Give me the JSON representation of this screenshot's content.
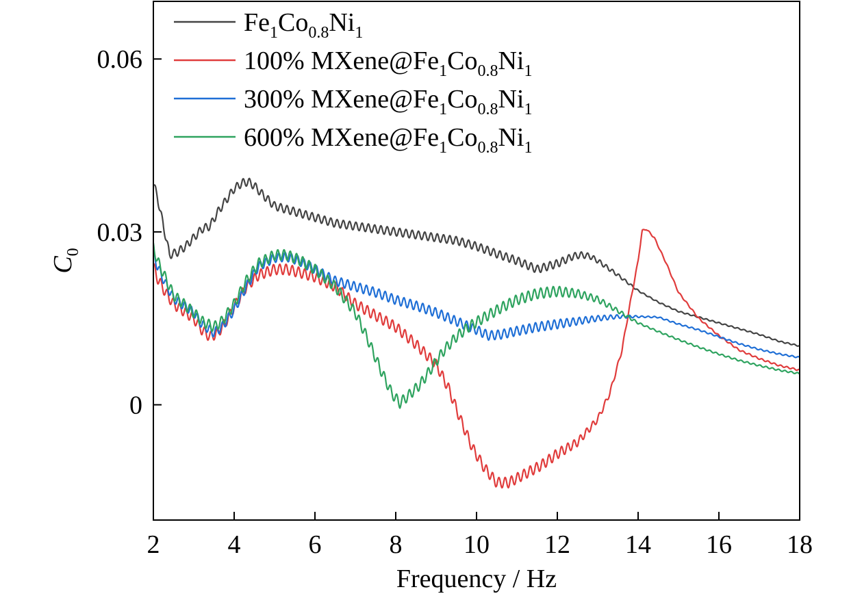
{
  "chart_data": {
    "type": "line",
    "xlabel": "Frequency / Hz",
    "ylabel": "C",
    "ylabel_sub": "0",
    "xlim": [
      2,
      18
    ],
    "ylim": [
      -0.02,
      0.07
    ],
    "x_ticks": [
      2,
      4,
      6,
      8,
      10,
      12,
      14,
      16,
      18
    ],
    "x_tick_labels": [
      "2",
      "4",
      "6",
      "8",
      "10",
      "12",
      "14",
      "16",
      "18"
    ],
    "y_ticks": [
      0,
      0.03,
      0.06
    ],
    "y_tick_labels": [
      "0",
      "0.03",
      "0.06"
    ],
    "grid": false,
    "legend_position": "top-left",
    "series": [
      {
        "legend_parts": [
          {
            "t": "Fe",
            "s": "1"
          },
          {
            "t": "Co",
            "s": "0.8"
          },
          {
            "t": "Ni",
            "s": "1"
          }
        ],
        "color": "#444444",
        "x": [
          2.0,
          2.1,
          2.25,
          2.4,
          2.6,
          2.8,
          3.0,
          3.2,
          3.4,
          3.6,
          3.8,
          4.0,
          4.2,
          4.35,
          4.5,
          4.7,
          5.0,
          5.5,
          6.0,
          6.5,
          7.0,
          7.5,
          8.0,
          8.5,
          9.0,
          9.5,
          10.0,
          10.5,
          11.0,
          11.5,
          12.0,
          12.4,
          12.6,
          12.8,
          13.0,
          13.5,
          14.0,
          14.5,
          15.0,
          15.5,
          16.0,
          16.5,
          17.0,
          17.5,
          18.0
        ],
        "y": [
          0.0385,
          0.036,
          0.031,
          0.026,
          0.0265,
          0.0275,
          0.029,
          0.0305,
          0.031,
          0.0335,
          0.0355,
          0.0375,
          0.0385,
          0.0387,
          0.038,
          0.0365,
          0.0345,
          0.0335,
          0.0325,
          0.0315,
          0.031,
          0.0305,
          0.03,
          0.0295,
          0.029,
          0.0285,
          0.0275,
          0.0262,
          0.025,
          0.0235,
          0.0245,
          0.0258,
          0.026,
          0.0258,
          0.025,
          0.0225,
          0.0198,
          0.0178,
          0.0162,
          0.0152,
          0.0142,
          0.0132,
          0.0122,
          0.011,
          0.0102
        ],
        "ripple": 0.0007
      },
      {
        "legend_parts": [
          {
            "t": "100% MXene@Fe",
            "s": "1"
          },
          {
            "t": "Co",
            "s": "0.8"
          },
          {
            "t": "Ni",
            "s": "1"
          }
        ],
        "color": "#e03c3c",
        "x": [
          2.0,
          2.1,
          2.3,
          2.5,
          2.7,
          3.0,
          3.2,
          3.4,
          3.6,
          3.8,
          4.0,
          4.3,
          4.6,
          5.0,
          5.3,
          5.6,
          6.0,
          6.5,
          7.0,
          7.5,
          8.0,
          8.5,
          9.0,
          9.3,
          9.6,
          9.9,
          10.2,
          10.5,
          10.8,
          11.2,
          11.6,
          12.0,
          12.5,
          13.0,
          13.3,
          13.6,
          13.8,
          14.0,
          14.1,
          14.2,
          14.4,
          14.7,
          15.0,
          15.5,
          16.0,
          16.5,
          17.0,
          17.5,
          18.0
        ],
        "y": [
          0.024,
          0.022,
          0.0195,
          0.0175,
          0.0165,
          0.015,
          0.013,
          0.0118,
          0.0125,
          0.0145,
          0.017,
          0.0205,
          0.0225,
          0.0235,
          0.0235,
          0.023,
          0.0222,
          0.0205,
          0.0175,
          0.0155,
          0.0135,
          0.0105,
          0.007,
          0.003,
          -0.0025,
          -0.0075,
          -0.011,
          -0.0135,
          -0.0135,
          -0.012,
          -0.0105,
          -0.0085,
          -0.0065,
          -0.0025,
          0.002,
          0.0095,
          0.0175,
          0.025,
          0.0302,
          0.0305,
          0.029,
          0.0245,
          0.0195,
          0.015,
          0.012,
          0.0095,
          0.008,
          0.0068,
          0.006
        ],
        "ripple": 0.0009
      },
      {
        "legend_parts": [
          {
            "t": "300% MXene@Fe",
            "s": "1"
          },
          {
            "t": "Co",
            "s": "0.8"
          },
          {
            "t": "Ni",
            "s": "1"
          }
        ],
        "color": "#1f6fd6",
        "x": [
          2.0,
          2.1,
          2.3,
          2.5,
          2.7,
          3.0,
          3.2,
          3.5,
          3.7,
          4.0,
          4.3,
          4.6,
          5.0,
          5.3,
          5.6,
          6.0,
          6.5,
          7.0,
          7.5,
          8.0,
          8.5,
          9.0,
          9.5,
          10.0,
          10.3,
          10.6,
          11.0,
          11.5,
          12.0,
          12.5,
          13.0,
          13.5,
          14.0,
          14.5,
          15.0,
          15.5,
          16.0,
          16.5,
          17.0,
          17.5,
          18.0
        ],
        "y": [
          0.0265,
          0.024,
          0.021,
          0.0185,
          0.0175,
          0.016,
          0.014,
          0.0125,
          0.0135,
          0.0165,
          0.0205,
          0.024,
          0.0255,
          0.0257,
          0.025,
          0.0235,
          0.0215,
          0.0205,
          0.0195,
          0.0182,
          0.0172,
          0.016,
          0.0145,
          0.013,
          0.012,
          0.0122,
          0.0128,
          0.0135,
          0.014,
          0.0145,
          0.015,
          0.0153,
          0.0153,
          0.0152,
          0.014,
          0.013,
          0.0118,
          0.0106,
          0.0096,
          0.0088,
          0.0082
        ],
        "ripple": 0.0008
      },
      {
        "legend_parts": [
          {
            "t": "600% MXene@Fe",
            "s": "1"
          },
          {
            "t": "Co",
            "s": "0.8"
          },
          {
            "t": "Ni",
            "s": "1"
          }
        ],
        "color": "#2ea35f",
        "x": [
          2.0,
          2.1,
          2.3,
          2.5,
          2.7,
          3.0,
          3.2,
          3.5,
          3.7,
          4.0,
          4.3,
          4.6,
          5.0,
          5.3,
          5.6,
          6.0,
          6.5,
          7.0,
          7.3,
          7.6,
          7.9,
          8.1,
          8.3,
          8.6,
          8.9,
          9.2,
          9.5,
          9.8,
          10.2,
          10.6,
          11.0,
          11.5,
          12.0,
          12.5,
          13.0,
          13.5,
          14.0,
          14.5,
          15.0,
          15.5,
          16.0,
          16.5,
          17.0,
          17.5,
          18.0
        ],
        "y": [
          0.0275,
          0.025,
          0.022,
          0.019,
          0.0178,
          0.016,
          0.0145,
          0.0135,
          0.0145,
          0.0175,
          0.0215,
          0.0245,
          0.026,
          0.026,
          0.0252,
          0.0235,
          0.0205,
          0.016,
          0.0115,
          0.0065,
          0.002,
          0.0003,
          0.0015,
          0.0035,
          0.0065,
          0.0095,
          0.0118,
          0.0135,
          0.0152,
          0.0168,
          0.0182,
          0.0193,
          0.0197,
          0.0193,
          0.0183,
          0.0163,
          0.0142,
          0.0127,
          0.0113,
          0.01,
          0.0088,
          0.0077,
          0.0068,
          0.006,
          0.0054
        ],
        "ripple": 0.0009
      }
    ]
  }
}
